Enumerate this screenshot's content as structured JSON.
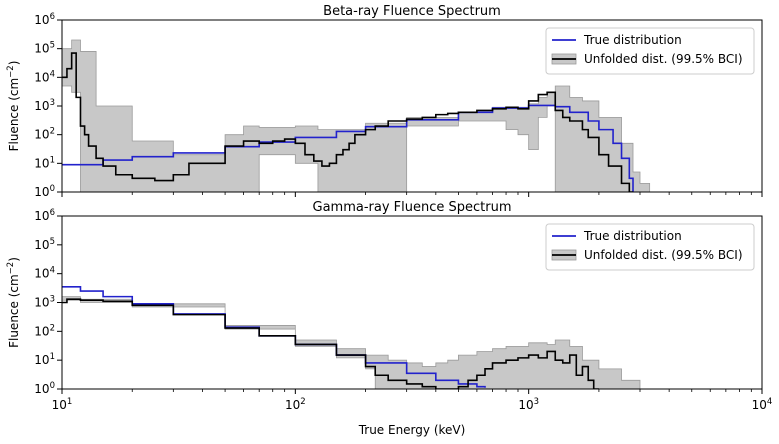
{
  "chart_data": [
    {
      "type": "line",
      "title": "Beta-ray Fluence Spectrum",
      "ylabel_base": "Fluence (cm",
      "ylabel_exp": "−2",
      "ylabel_close": ")",
      "xlabel": "",
      "xscale": "log",
      "yscale": "log",
      "xlim": [
        10,
        10000
      ],
      "ylim": [
        1,
        1000000
      ],
      "legend_position": "upper right",
      "legend": [
        "True distribution",
        "Unfolded dist. (99.5% BCI)"
      ],
      "colors": {
        "true": "#2222cc",
        "unfolded": "#000000",
        "band": "#c8c8c8"
      },
      "true_distribution": {
        "x": [
          10,
          15,
          20,
          30,
          50,
          70,
          100,
          150,
          200,
          300,
          500,
          700,
          1000,
          1300,
          1500,
          1800,
          2000,
          2300,
          2500,
          2700,
          2800
        ],
        "y": [
          9,
          13,
          17,
          23,
          38,
          55,
          80,
          130,
          190,
          330,
          600,
          850,
          1050,
          950,
          600,
          300,
          150,
          50,
          15,
          3,
          1
        ]
      },
      "unfolded_median": {
        "x": [
          10,
          10.5,
          11,
          11.5,
          12,
          12.5,
          13,
          14,
          15,
          17,
          20,
          25,
          30,
          35,
          40,
          50,
          60,
          70,
          80,
          90,
          100,
          110,
          120,
          130,
          140,
          150,
          160,
          170,
          180,
          200,
          220,
          250,
          300,
          350,
          400,
          450,
          500,
          600,
          700,
          800,
          900,
          1000,
          1100,
          1200,
          1300,
          1400,
          1500,
          1700,
          1800,
          2000,
          2200,
          2500,
          2700,
          2800
        ],
        "y": [
          10000,
          20000,
          70000,
          2000,
          200,
          100,
          40,
          15,
          8,
          4,
          3,
          2.5,
          4,
          10,
          10,
          40,
          60,
          50,
          60,
          70,
          50,
          20,
          12,
          8,
          10,
          20,
          30,
          50,
          100,
          150,
          200,
          300,
          350,
          400,
          500,
          550,
          600,
          700,
          800,
          900,
          800,
          1500,
          2500,
          3000,
          700,
          400,
          300,
          150,
          80,
          20,
          8,
          2,
          1,
          1
        ]
      },
      "band_lower": {
        "x": [
          10,
          11,
          12,
          60,
          70,
          100,
          125,
          200,
          300,
          500,
          700,
          800,
          900,
          1000,
          1100,
          1200,
          1300,
          1400,
          1500,
          1700,
          1800,
          2000,
          2500,
          3000
        ],
        "y": [
          5000,
          3000,
          1,
          1,
          20,
          10,
          1,
          1,
          200,
          300,
          300,
          150,
          100,
          30,
          400,
          1000,
          1,
          1,
          1,
          1,
          1,
          1,
          1,
          1
        ]
      },
      "band_upper": {
        "x": [
          10,
          11,
          12,
          14,
          20,
          30,
          50,
          60,
          70,
          100,
          125,
          200,
          300,
          500,
          700,
          1000,
          1100,
          1200,
          1300,
          1500,
          1700,
          2000,
          2500,
          2800,
          3000,
          3300
        ],
        "y": [
          100000,
          200000,
          80000,
          1000,
          60,
          20,
          100,
          200,
          180,
          200,
          150,
          250,
          400,
          600,
          900,
          1200,
          2000,
          3000,
          5000,
          2000,
          1500,
          400,
          50,
          5,
          2,
          1
        ]
      }
    },
    {
      "type": "line",
      "title": "Gamma-ray Fluence Spectrum",
      "ylabel_base": "Fluence (cm",
      "ylabel_exp": "−2",
      "ylabel_close": ")",
      "xlabel": "True Energy (keV)",
      "xscale": "log",
      "yscale": "log",
      "xlim": [
        10,
        10000
      ],
      "ylim": [
        1,
        1000000
      ],
      "legend_position": "upper right",
      "legend": [
        "True distribution",
        "Unfolded dist. (99.5% BCI)"
      ],
      "colors": {
        "true": "#2222cc",
        "unfolded": "#000000",
        "band": "#c8c8c8"
      },
      "true_distribution": {
        "x": [
          10,
          12,
          15,
          20,
          30,
          50,
          70,
          100,
          150,
          200,
          300,
          400,
          500,
          600,
          650
        ],
        "y": [
          3500,
          2500,
          1600,
          900,
          400,
          140,
          70,
          35,
          15,
          8,
          3.5,
          2,
          1.5,
          1.2,
          1.1
        ]
      },
      "unfolded_median": {
        "x": [
          10,
          10.5,
          12,
          15,
          20,
          30,
          50,
          70,
          100,
          150,
          200,
          220,
          250,
          300,
          350,
          400,
          450,
          500,
          550,
          600,
          650,
          700,
          800,
          900,
          1000,
          1100,
          1200,
          1300,
          1400,
          1500,
          1600,
          1700,
          1800,
          1900,
          2000
        ],
        "y": [
          1000,
          1300,
          1200,
          1100,
          800,
          380,
          130,
          70,
          35,
          15,
          6,
          3,
          2,
          1.5,
          1.2,
          1,
          1,
          1.2,
          2,
          3,
          5,
          8,
          10,
          12,
          15,
          12,
          20,
          10,
          8,
          15,
          3,
          6,
          2,
          1,
          1
        ]
      },
      "band_lower": {
        "x": [
          10,
          12,
          20,
          50,
          100,
          150,
          200,
          220,
          250,
          300,
          600,
          1000,
          1600,
          2000
        ],
        "y": [
          1200,
          1000,
          700,
          120,
          30,
          12,
          5,
          1,
          1,
          1,
          1,
          1,
          1,
          1
        ]
      },
      "band_upper": {
        "x": [
          10,
          12,
          20,
          50,
          100,
          150,
          200,
          250,
          300,
          350,
          400,
          450,
          500,
          600,
          700,
          800,
          1000,
          1200,
          1300,
          1500,
          1700,
          2000,
          2500,
          3000
        ],
        "y": [
          1600,
          1300,
          900,
          160,
          50,
          25,
          15,
          10,
          8,
          6,
          8,
          10,
          15,
          20,
          25,
          30,
          40,
          35,
          50,
          30,
          10,
          5,
          2,
          1
        ]
      }
    }
  ],
  "axis_ticks": {
    "x": [
      {
        "value": 10,
        "base": "10",
        "exp": "1"
      },
      {
        "value": 100,
        "base": "10",
        "exp": "2"
      },
      {
        "value": 1000,
        "base": "10",
        "exp": "3"
      },
      {
        "value": 10000,
        "base": "10",
        "exp": "4"
      }
    ],
    "y": [
      {
        "value": 1,
        "base": "10",
        "exp": "0"
      },
      {
        "value": 10,
        "base": "10",
        "exp": "1"
      },
      {
        "value": 100,
        "base": "10",
        "exp": "2"
      },
      {
        "value": 1000,
        "base": "10",
        "exp": "3"
      },
      {
        "value": 10000,
        "base": "10",
        "exp": "4"
      },
      {
        "value": 100000,
        "base": "10",
        "exp": "5"
      },
      {
        "value": 1000000,
        "base": "10",
        "exp": "6"
      }
    ]
  }
}
